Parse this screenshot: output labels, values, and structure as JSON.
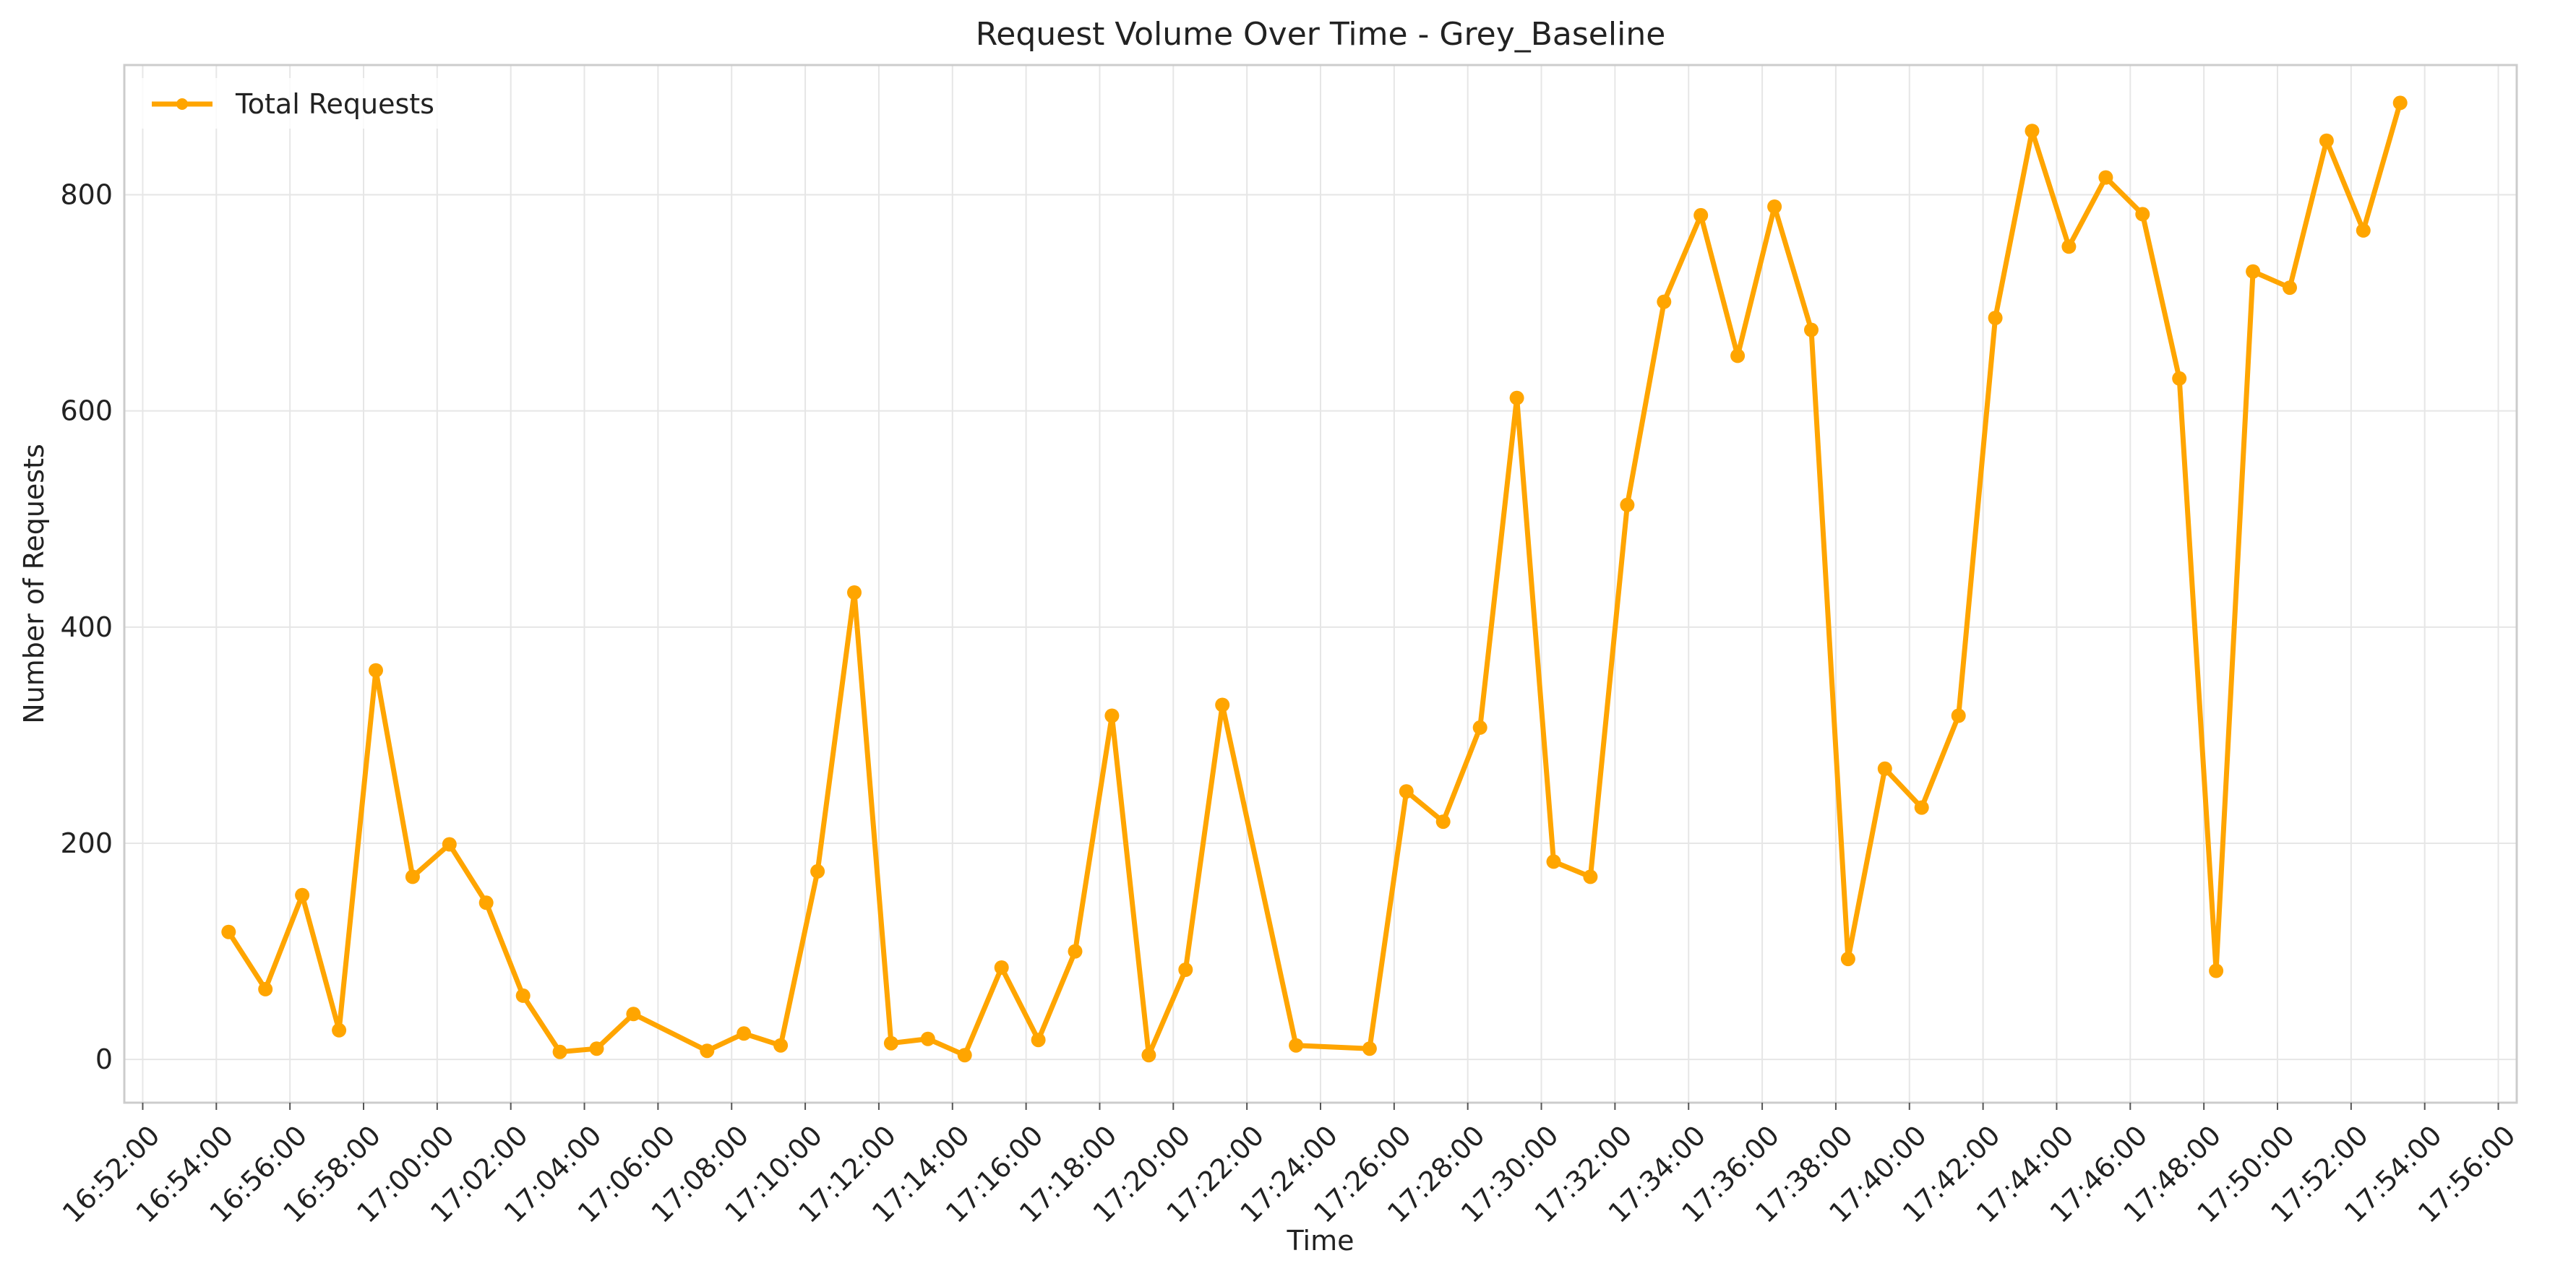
{
  "chart_data": {
    "type": "line",
    "title": "Request Volume Over Time - Grey_Baseline",
    "xlabel": "Time",
    "ylabel": "Number of Requests",
    "xlim": [
      "16:52:00",
      "17:56:00"
    ],
    "ylim": [
      -40,
      920
    ],
    "x_ticks": [
      "16:52:00",
      "16:54:00",
      "16:56:00",
      "16:58:00",
      "17:00:00",
      "17:02:00",
      "17:04:00",
      "17:06:00",
      "17:08:00",
      "17:10:00",
      "17:12:00",
      "17:14:00",
      "17:16:00",
      "17:18:00",
      "17:20:00",
      "17:22:00",
      "17:24:00",
      "17:26:00",
      "17:28:00",
      "17:30:00",
      "17:32:00",
      "17:34:00",
      "17:36:00",
      "17:38:00",
      "17:40:00",
      "17:42:00",
      "17:44:00",
      "17:46:00",
      "17:48:00",
      "17:50:00",
      "17:52:00",
      "17:54:00",
      "17:56:00"
    ],
    "y_ticks": [
      0,
      200,
      400,
      600,
      800
    ],
    "grid": true,
    "legend_position": "top-left",
    "line_color": "#FFA500",
    "series": [
      {
        "name": "Total Requests",
        "x": [
          "16:54:20",
          "16:55:20",
          "16:56:20",
          "16:57:20",
          "16:58:20",
          "16:59:20",
          "17:00:20",
          "17:01:20",
          "17:02:20",
          "17:03:20",
          "17:04:20",
          "17:05:20",
          "17:07:20",
          "17:08:20",
          "17:09:20",
          "17:10:20",
          "17:11:20",
          "17:12:20",
          "17:13:20",
          "17:14:20",
          "17:15:20",
          "17:16:20",
          "17:17:20",
          "17:18:20",
          "17:19:20",
          "17:20:20",
          "17:21:20",
          "17:23:20",
          "17:25:20",
          "17:26:20",
          "17:27:20",
          "17:28:20",
          "17:29:20",
          "17:30:20",
          "17:31:20",
          "17:32:20",
          "17:33:20",
          "17:34:20",
          "17:35:20",
          "17:36:20",
          "17:37:20",
          "17:38:20",
          "17:39:20",
          "17:40:20",
          "17:41:20",
          "17:42:20",
          "17:43:20",
          "17:44:20",
          "17:45:20",
          "17:46:20",
          "17:47:20",
          "17:48:20",
          "17:49:20",
          "17:50:20",
          "17:51:20",
          "17:52:20",
          "17:53:20"
        ],
        "values": [
          118,
          65,
          152,
          27,
          360,
          169,
          199,
          145,
          59,
          7,
          10,
          42,
          8,
          24,
          13,
          174,
          432,
          15,
          19,
          4,
          85,
          18,
          100,
          318,
          4,
          83,
          328,
          13,
          10,
          248,
          220,
          307,
          612,
          183,
          169,
          513,
          701,
          781,
          651,
          789,
          675,
          93,
          269,
          233,
          318,
          686,
          859,
          752,
          816,
          782,
          630,
          82,
          729,
          714,
          850,
          767,
          885
        ]
      }
    ]
  }
}
